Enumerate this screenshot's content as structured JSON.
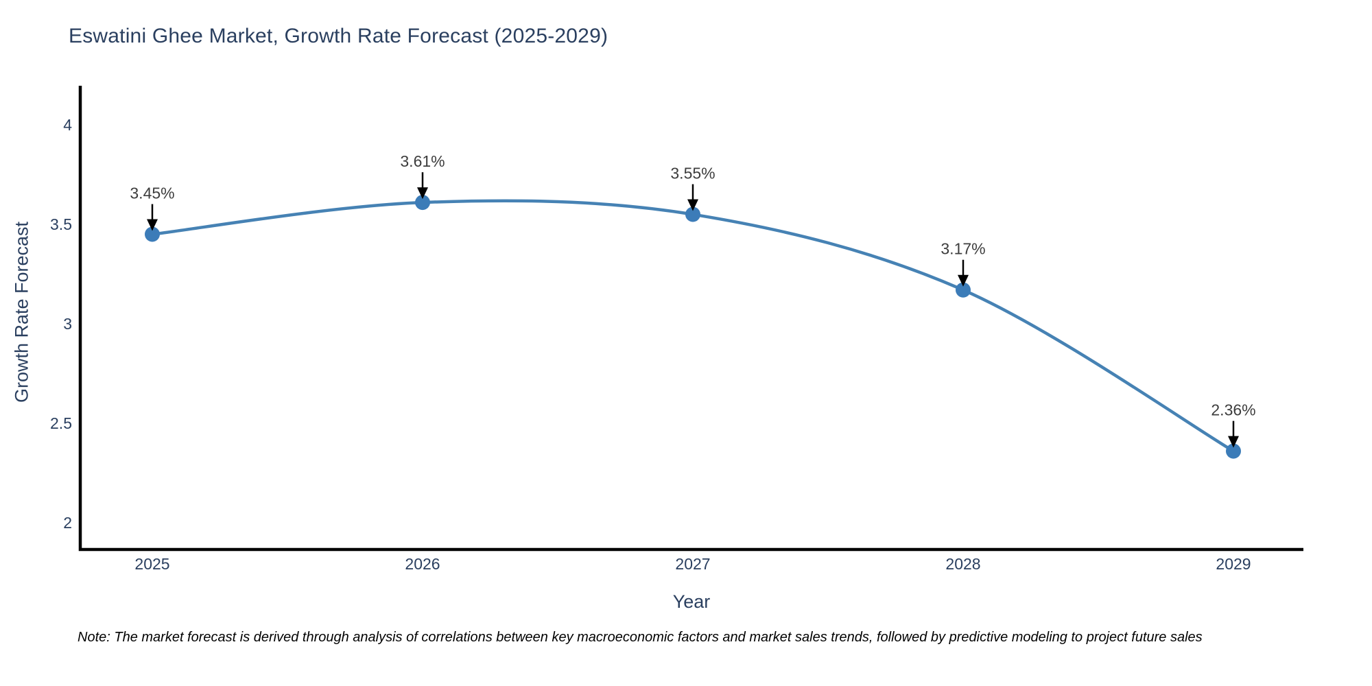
{
  "title": "Eswatini Ghee Market, Growth Rate Forecast (2025-2029)",
  "note": "Note: The market forecast is derived through analysis of correlations between key macroeconomic factors and market sales trends, followed by predictive modeling to project future sales",
  "chart_data": {
    "type": "line",
    "line_shape": "spline",
    "title": "Eswatini Ghee Market, Growth Rate Forecast (2025-2029)",
    "xlabel": "Year",
    "ylabel": "Growth Rate Forecast",
    "categories": [
      "2025",
      "2026",
      "2027",
      "2028",
      "2029"
    ],
    "values": [
      3.45,
      3.61,
      3.55,
      3.17,
      2.36
    ],
    "point_labels": [
      "3.45%",
      "3.61%",
      "3.55%",
      "3.17%",
      "2.36%"
    ],
    "yticks": [
      4,
      3.5,
      3,
      2.5,
      2
    ],
    "ylim": [
      1.87,
      4.2
    ],
    "grid": false,
    "legend_position": "none",
    "colors": {
      "line": "#4682b4",
      "marker": "#3c7cb8",
      "arrow": "#000000",
      "axis": "#000000",
      "title_text": "#2a3f5f",
      "tick_text": "#2a3f5f",
      "annotation_text": "#3d3d3d",
      "note_text": "#000000",
      "background": "#ffffff"
    }
  }
}
